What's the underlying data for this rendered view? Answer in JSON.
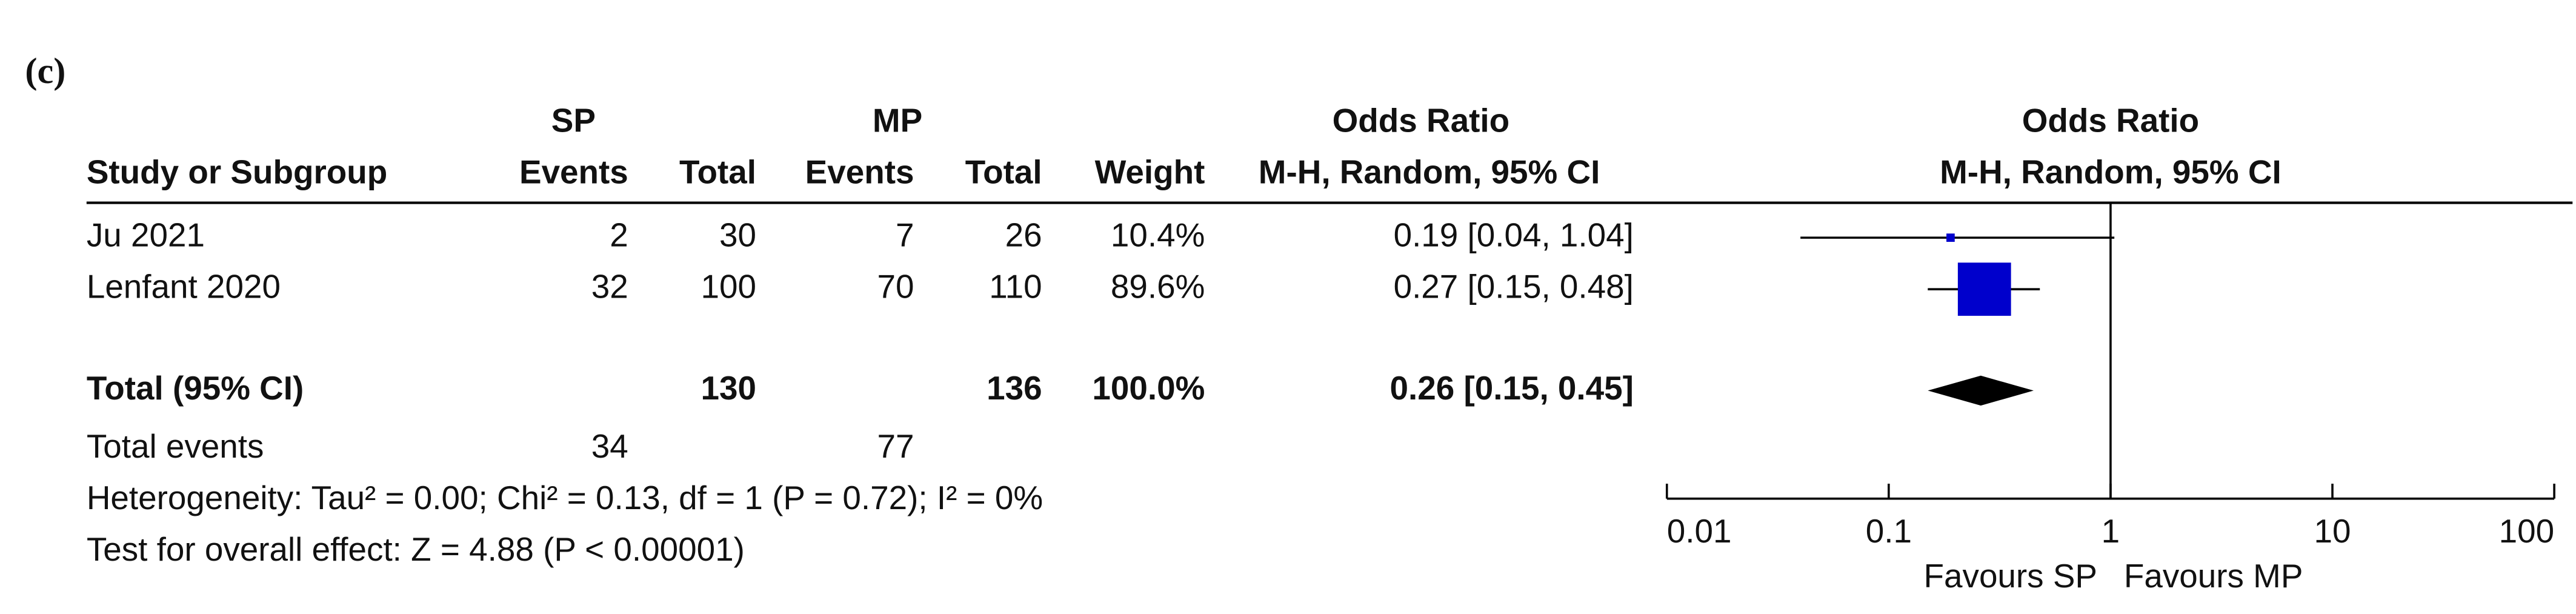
{
  "panel_label": "(c)",
  "table": {
    "group_headers": [
      "SP",
      "MP",
      "Odds Ratio",
      "Odds Ratio"
    ],
    "columns": [
      "Study or Subgroup",
      "Events",
      "Total",
      "Events",
      "Total",
      "Weight",
      "M-H, Random, 95% CI",
      "M-H, Random, 95% CI"
    ],
    "rows": [
      [
        "Ju 2021",
        "2",
        "30",
        "7",
        "26",
        "10.4%",
        "0.19 [0.04, 1.04]"
      ],
      [
        "Lenfant 2020",
        "32",
        "100",
        "70",
        "110",
        "89.6%",
        "0.27 [0.15, 0.48]"
      ]
    ],
    "total": {
      "label": "Total (95% CI)",
      "sp_total": "130",
      "mp_total": "136",
      "weight": "100.0%",
      "odds_ratio": "0.26 [0.15, 0.45]"
    },
    "total_events": {
      "label": "Total events",
      "sp": "34",
      "mp": "77"
    },
    "heterogeneity": "Heterogeneity: Tau² = 0.00; Chi² = 0.13, df = 1 (P = 0.72); I² = 0%",
    "overall_effect": "Test for overall effect: Z = 4.88 (P < 0.00001)"
  },
  "chart_data": {
    "type": "forest",
    "log_scale": true,
    "xlim": [
      0.01,
      100
    ],
    "xticks": [
      0.01,
      0.1,
      1,
      10,
      100
    ],
    "reference": 1,
    "values": [
      0.19,
      0.27
    ],
    "ci_lower": [
      0.04,
      0.15
    ],
    "ci_upper": [
      1.04,
      0.48
    ],
    "weights": [
      10.4,
      89.6
    ],
    "color": "#0000cc",
    "pooled": {
      "value": 0.26,
      "ci_lower": 0.15,
      "ci_upper": 0.45,
      "color": "#000000"
    },
    "x_labels": [
      "Favours SP",
      "Favours MP"
    ]
  }
}
